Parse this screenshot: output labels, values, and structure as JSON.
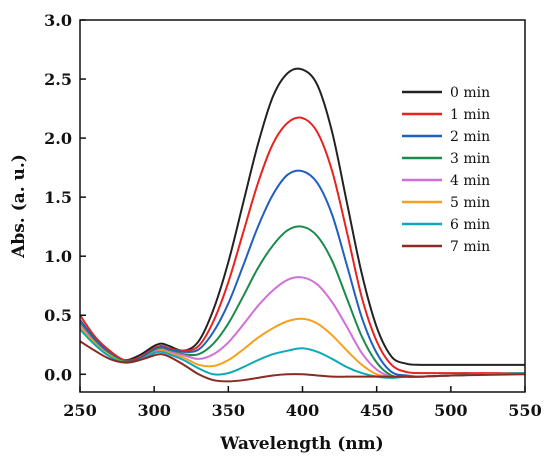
{
  "chart_data": {
    "type": "line",
    "xlabel": "Wavelength (nm)",
    "ylabel": "Abs. (a. u.)",
    "xlim": [
      250,
      550
    ],
    "ylim": [
      -0.15,
      3.0
    ],
    "x_ticks": [
      250,
      300,
      350,
      400,
      450,
      500,
      550
    ],
    "y_ticks": [
      0.0,
      0.5,
      1.0,
      1.5,
      2.0,
      2.5,
      3.0
    ],
    "x_tick_labels": [
      "250",
      "300",
      "350",
      "400",
      "450",
      "500",
      "550"
    ],
    "y_tick_labels": [
      "0.0",
      "0.5",
      "1.0",
      "1.5",
      "2.0",
      "2.5",
      "3.0"
    ],
    "grid": false,
    "legend_position": "top-right",
    "x": [
      250,
      260,
      270,
      280,
      290,
      300,
      305,
      310,
      320,
      330,
      340,
      350,
      360,
      370,
      380,
      390,
      400,
      410,
      420,
      430,
      440,
      450,
      460,
      470,
      480,
      500,
      550
    ],
    "series": [
      {
        "name": "0 min",
        "color": "#222222",
        "values": [
          0.45,
          0.3,
          0.18,
          0.12,
          0.16,
          0.24,
          0.26,
          0.24,
          0.2,
          0.28,
          0.55,
          0.95,
          1.45,
          1.95,
          2.35,
          2.55,
          2.58,
          2.45,
          2.05,
          1.45,
          0.85,
          0.4,
          0.15,
          0.09,
          0.08,
          0.08,
          0.08
        ]
      },
      {
        "name": "1 min",
        "color": "#e8221f",
        "values": [
          0.5,
          0.32,
          0.2,
          0.12,
          0.14,
          0.22,
          0.24,
          0.22,
          0.2,
          0.24,
          0.45,
          0.78,
          1.2,
          1.62,
          1.95,
          2.13,
          2.17,
          2.05,
          1.72,
          1.2,
          0.65,
          0.28,
          0.08,
          0.02,
          0.01,
          0.01,
          0.01
        ]
      },
      {
        "name": "2 min",
        "color": "#1f5fbf",
        "values": [
          0.46,
          0.3,
          0.18,
          0.11,
          0.13,
          0.21,
          0.23,
          0.21,
          0.19,
          0.21,
          0.36,
          0.6,
          0.92,
          1.25,
          1.52,
          1.69,
          1.72,
          1.62,
          1.35,
          0.92,
          0.48,
          0.18,
          0.02,
          -0.01,
          -0.02,
          -0.01,
          0.01
        ]
      },
      {
        "name": "3 min",
        "color": "#1a8a4a",
        "values": [
          0.44,
          0.28,
          0.17,
          0.11,
          0.12,
          0.2,
          0.22,
          0.2,
          0.17,
          0.17,
          0.26,
          0.43,
          0.66,
          0.9,
          1.09,
          1.22,
          1.25,
          1.17,
          0.96,
          0.64,
          0.32,
          0.1,
          -0.01,
          -0.02,
          -0.02,
          -0.01,
          0.01
        ]
      },
      {
        "name": "4 min",
        "color": "#d070d8",
        "values": [
          0.42,
          0.27,
          0.16,
          0.1,
          0.12,
          0.19,
          0.21,
          0.19,
          0.16,
          0.13,
          0.17,
          0.27,
          0.42,
          0.58,
          0.71,
          0.8,
          0.82,
          0.76,
          0.61,
          0.4,
          0.18,
          0.04,
          -0.02,
          -0.02,
          -0.02,
          -0.01,
          0.01
        ]
      },
      {
        "name": "5 min",
        "color": "#f5a020",
        "values": [
          0.4,
          0.26,
          0.16,
          0.1,
          0.12,
          0.18,
          0.2,
          0.18,
          0.14,
          0.08,
          0.07,
          0.12,
          0.21,
          0.31,
          0.39,
          0.45,
          0.47,
          0.43,
          0.33,
          0.2,
          0.08,
          0.0,
          -0.02,
          -0.02,
          -0.02,
          -0.01,
          0.01
        ]
      },
      {
        "name": "6 min",
        "color": "#10a8b8",
        "values": [
          0.38,
          0.25,
          0.15,
          0.1,
          0.12,
          0.18,
          0.19,
          0.17,
          0.12,
          0.05,
          0.0,
          0.01,
          0.06,
          0.12,
          0.17,
          0.2,
          0.22,
          0.19,
          0.13,
          0.06,
          0.01,
          -0.02,
          -0.03,
          -0.02,
          -0.02,
          -0.01,
          0.01
        ]
      },
      {
        "name": "7 min",
        "color": "#8b2a22",
        "values": [
          0.28,
          0.2,
          0.13,
          0.1,
          0.12,
          0.16,
          0.17,
          0.15,
          0.08,
          0.0,
          -0.05,
          -0.06,
          -0.05,
          -0.03,
          -0.01,
          0.0,
          0.0,
          -0.01,
          -0.02,
          -0.02,
          -0.02,
          -0.02,
          -0.02,
          -0.02,
          -0.02,
          -0.01,
          0.0
        ]
      }
    ]
  }
}
